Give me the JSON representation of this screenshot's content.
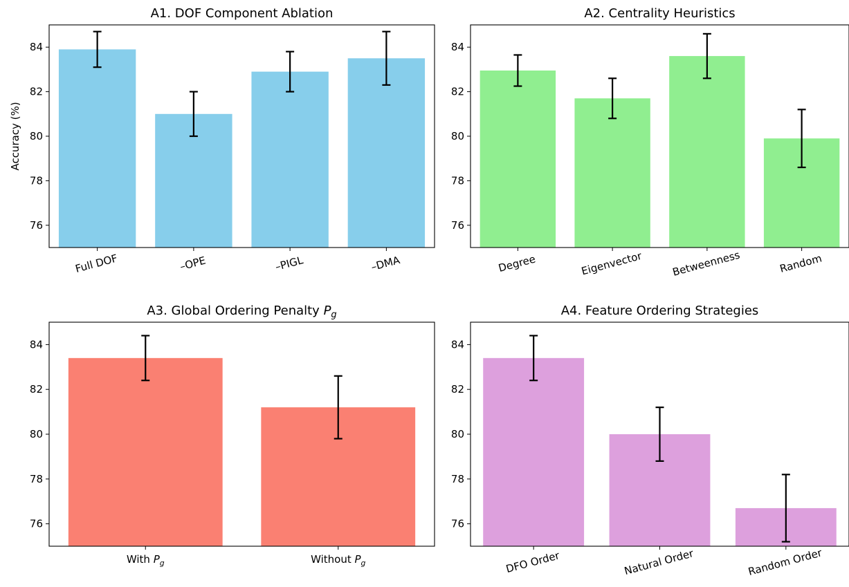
{
  "figure": {
    "ylabel_shared": "Accuracy (%)"
  },
  "colors": {
    "A1": "#87CEEB",
    "A2": "#90EE90",
    "A3": "#FA8072",
    "A4": "#DDA0DD",
    "errorbar": "#000000"
  },
  "chart_data": [
    {
      "id": "A1",
      "type": "bar",
      "title": "A1. DOF Component Ablation",
      "ylabel": "Accuracy (%)",
      "xlabel": "",
      "categories": [
        "Full DOF",
        "–OPE",
        "–PIGL",
        "–DMA"
      ],
      "values": [
        83.9,
        81.0,
        82.9,
        83.5
      ],
      "errors": [
        0.8,
        1.0,
        0.9,
        1.2
      ],
      "ylim": [
        75,
        85
      ],
      "yticks": [
        76,
        78,
        80,
        82,
        84
      ],
      "xtick_rotation": 15
    },
    {
      "id": "A2",
      "type": "bar",
      "title": "A2. Centrality Heuristics",
      "ylabel": "",
      "xlabel": "",
      "categories": [
        "Degree",
        "Eigenvector",
        "Betweenness",
        "Random"
      ],
      "values": [
        82.95,
        81.7,
        83.6,
        79.9
      ],
      "errors": [
        0.7,
        0.9,
        1.0,
        1.3
      ],
      "ylim": [
        75,
        85
      ],
      "yticks": [
        76,
        78,
        80,
        82,
        84
      ],
      "xtick_rotation": 15
    },
    {
      "id": "A3",
      "type": "bar",
      "title": "A3. Global Ordering Penalty P_g",
      "ylabel": "",
      "xlabel": "",
      "categories": [
        "With P_g",
        "Without P_g"
      ],
      "values": [
        83.4,
        81.2
      ],
      "errors": [
        1.0,
        1.4
      ],
      "ylim": [
        75,
        85
      ],
      "yticks": [
        76,
        78,
        80,
        82,
        84
      ],
      "xtick_rotation": 0
    },
    {
      "id": "A4",
      "type": "bar",
      "title": "A4. Feature Ordering Strategies",
      "ylabel": "",
      "xlabel": "",
      "categories": [
        "DFO Order",
        "Natural Order",
        "Random Order"
      ],
      "values": [
        83.4,
        80.0,
        76.7
      ],
      "errors": [
        1.0,
        1.2,
        1.5
      ],
      "ylim": [
        75,
        85
      ],
      "yticks": [
        76,
        78,
        80,
        82,
        84
      ],
      "xtick_rotation": 15
    }
  ]
}
